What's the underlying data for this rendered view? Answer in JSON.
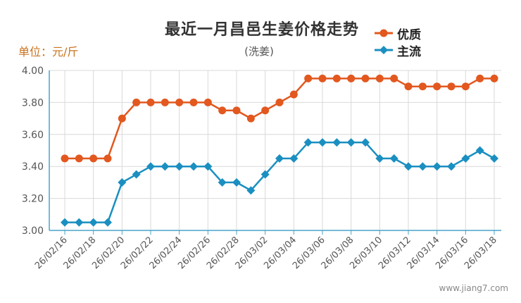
{
  "chart_data": {
    "type": "line",
    "title": "最近一月昌邑生姜价格走势",
    "subtitle": "(洗姜)",
    "unit_label": "单位：元/斤",
    "watermark": "www.jiang7.com",
    "ylim": [
      3.0,
      4.0
    ],
    "yticks": [
      "3.00",
      "3.20",
      "3.40",
      "3.60",
      "3.80",
      "4.00"
    ],
    "grid": true,
    "legend_position": "top-right",
    "categories": [
      "26/02/16",
      "26/02/17",
      "26/02/18",
      "26/02/19",
      "26/02/20",
      "26/02/21",
      "26/02/22",
      "26/02/23",
      "26/02/24",
      "26/02/25",
      "26/02/26",
      "26/02/27",
      "26/02/28",
      "26/03/01",
      "26/03/02",
      "26/03/03",
      "26/03/04",
      "26/03/05",
      "26/03/06",
      "26/03/07",
      "26/03/08",
      "26/03/09",
      "26/03/10",
      "26/03/11",
      "26/03/12",
      "26/03/13",
      "26/03/14",
      "26/03/15",
      "26/03/16",
      "26/03/17",
      "26/03/18"
    ],
    "xtick_labels": [
      "26/02/16",
      "26/02/18",
      "26/02/20",
      "26/02/22",
      "26/02/24",
      "26/02/26",
      "26/02/28",
      "26/03/02",
      "26/03/04",
      "26/03/06",
      "26/03/08",
      "26/03/10",
      "26/03/12",
      "26/03/14",
      "26/03/16",
      "26/03/18"
    ],
    "series": [
      {
        "name": "优质",
        "color": "#e2581f",
        "marker": "circle",
        "values": [
          3.45,
          3.45,
          3.45,
          3.45,
          3.7,
          3.8,
          3.8,
          3.8,
          3.8,
          3.8,
          3.8,
          3.75,
          3.75,
          3.7,
          3.75,
          3.8,
          3.85,
          3.95,
          3.95,
          3.95,
          3.95,
          3.95,
          3.95,
          3.95,
          3.9,
          3.9,
          3.9,
          3.9,
          3.9,
          3.95,
          3.95
        ]
      },
      {
        "name": "主流",
        "color": "#1a8fc0",
        "marker": "diamond",
        "values": [
          3.05,
          3.05,
          3.05,
          3.05,
          3.3,
          3.35,
          3.4,
          3.4,
          3.4,
          3.4,
          3.4,
          3.3,
          3.3,
          3.25,
          3.35,
          3.45,
          3.45,
          3.55,
          3.55,
          3.55,
          3.55,
          3.55,
          3.45,
          3.45,
          3.4,
          3.4,
          3.4,
          3.4,
          3.45,
          3.5,
          3.45
        ]
      }
    ]
  }
}
